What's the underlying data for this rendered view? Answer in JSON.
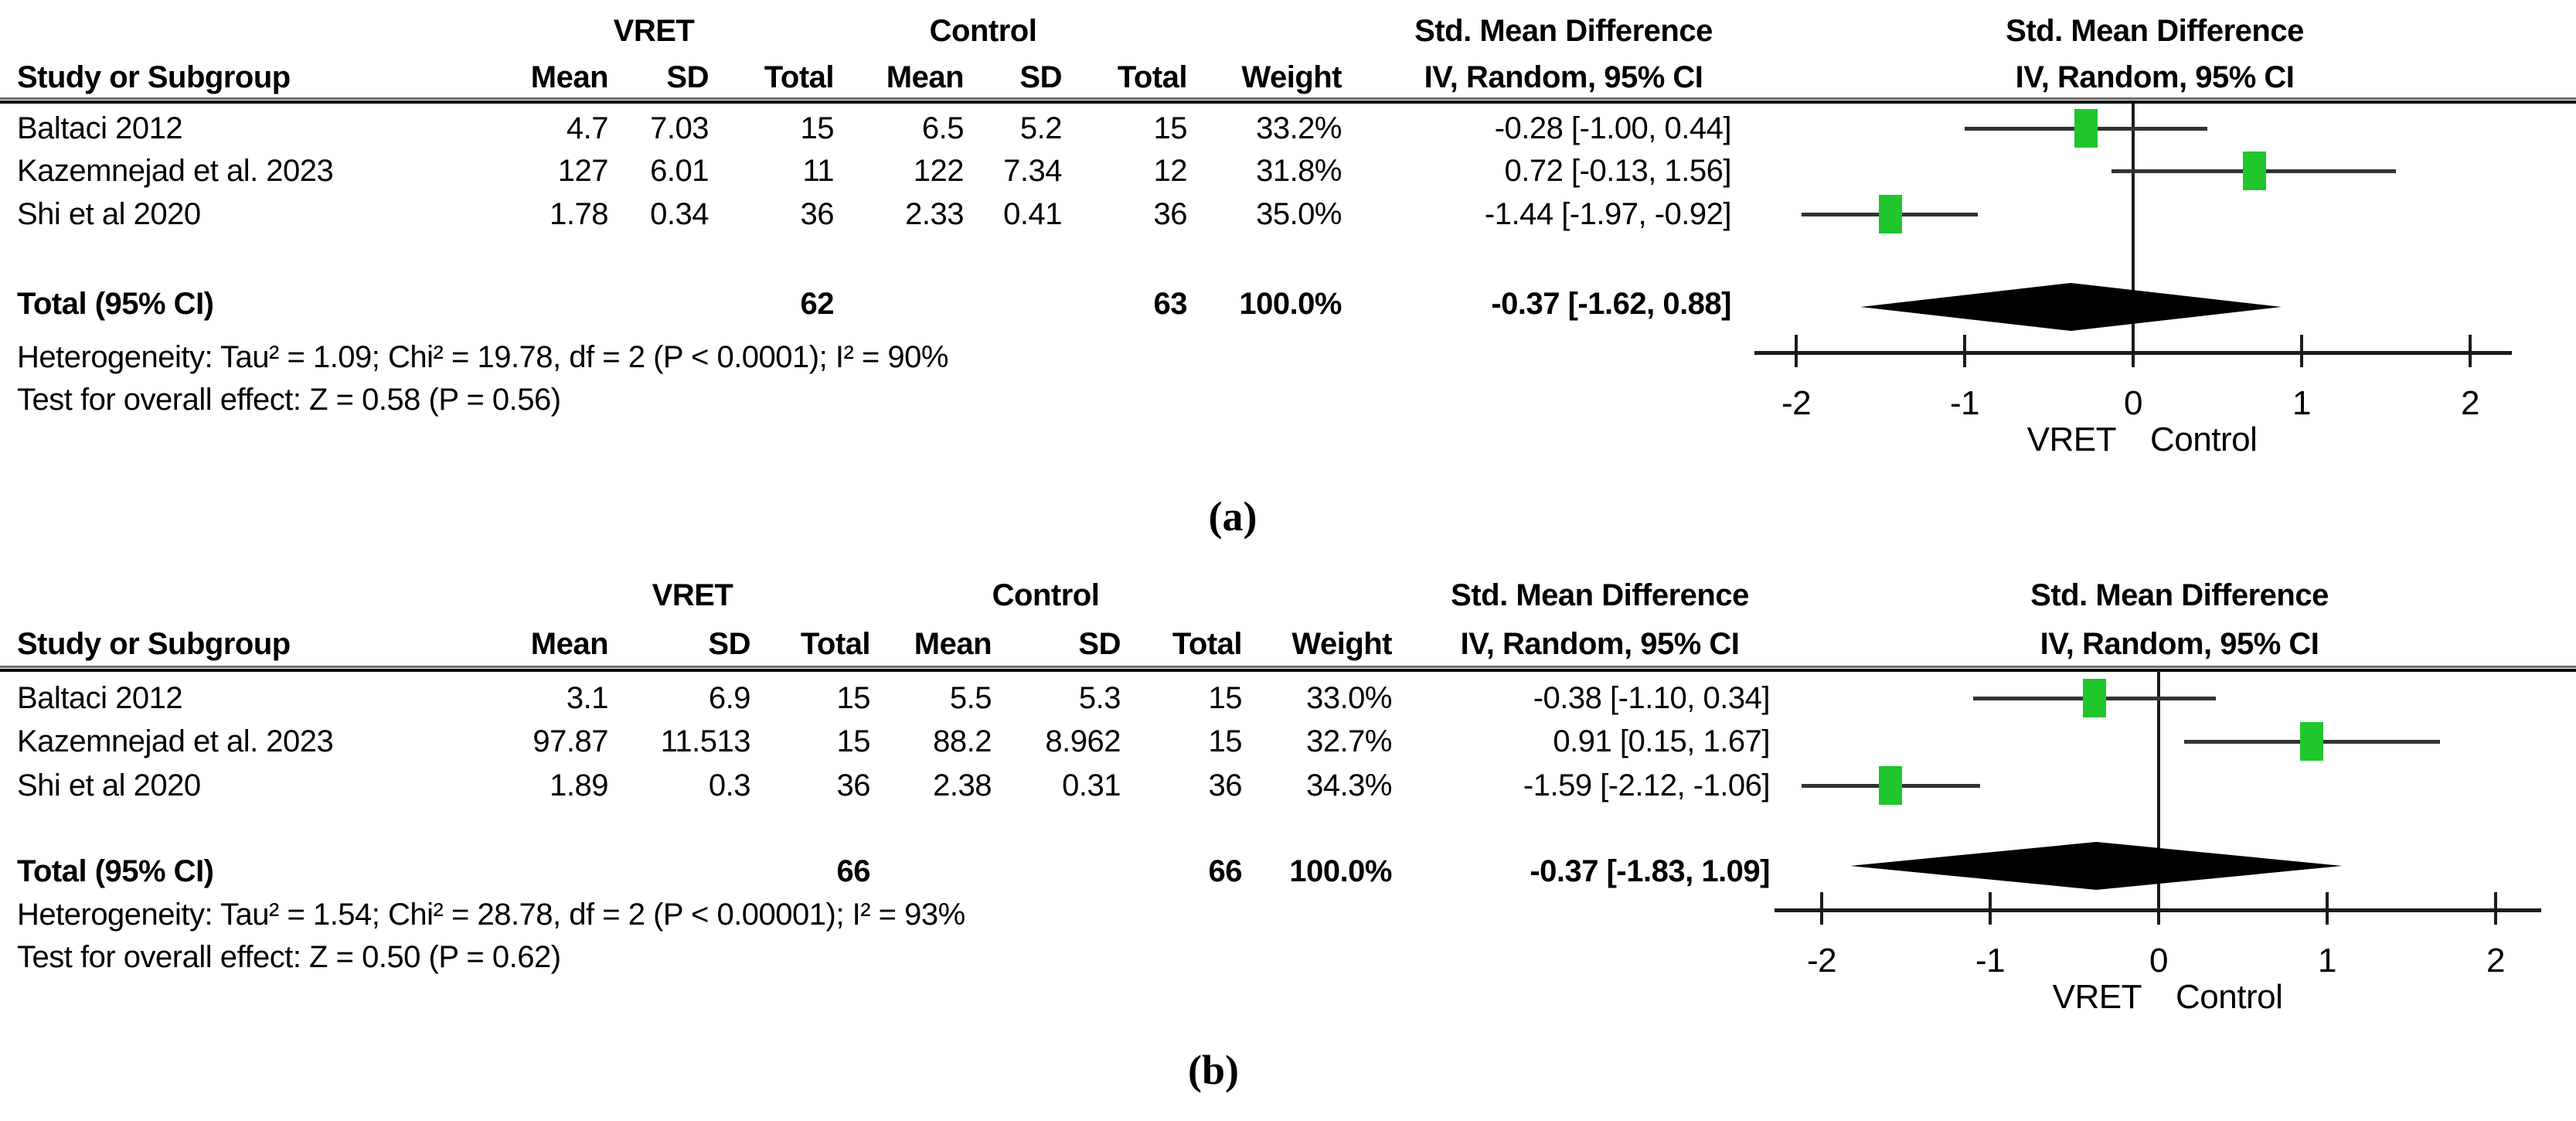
{
  "figure": {
    "captions": {
      "a": "(a)",
      "b": "(b)"
    }
  },
  "panels": [
    {
      "id": "a",
      "caption": "(a)",
      "header": {
        "study_col": "Study or Subgroup",
        "group1": "VRET",
        "group2": "Control",
        "smd_text_col": "Std. Mean Difference",
        "smd_plot_col": "Std. Mean Difference",
        "mean1": "Mean",
        "sd1": "SD",
        "n1": "Total",
        "mean2": "Mean",
        "sd2": "SD",
        "n2": "Total",
        "weight": "Weight",
        "ci_col_text": "IV, Random, 95% CI",
        "ci_col_plot": "IV, Random, 95% CI"
      },
      "rows": [
        {
          "study": "Baltaci 2012",
          "mean1": "4.7",
          "sd1": "7.03",
          "n1": "15",
          "mean2": "6.5",
          "sd2": "5.2",
          "n2": "15",
          "weight": "33.2%",
          "ci_text": "-0.28 [-1.00, 0.44]",
          "effect": -0.28,
          "lo": -1.0,
          "hi": 0.44
        },
        {
          "study": "Kazemnejad et al. 2023",
          "mean1": "127",
          "sd1": "6.01",
          "n1": "11",
          "mean2": "122",
          "sd2": "7.34",
          "n2": "12",
          "weight": "31.8%",
          "ci_text": "0.72 [-0.13, 1.56]",
          "effect": 0.72,
          "lo": -0.13,
          "hi": 1.56
        },
        {
          "study": "Shi et al 2020",
          "mean1": "1.78",
          "sd1": "0.34",
          "n1": "36",
          "mean2": "2.33",
          "sd2": "0.41",
          "n2": "36",
          "weight": "35.0%",
          "ci_text": "-1.44 [-1.97, -0.92]",
          "effect": -1.44,
          "lo": -1.97,
          "hi": -0.92
        }
      ],
      "total": {
        "label": "Total (95% CI)",
        "n1": "62",
        "n2": "63",
        "weight": "100.0%",
        "ci_text": "-0.37 [-1.62, 0.88]",
        "effect": -0.37,
        "lo": -1.62,
        "hi": 0.88
      },
      "heterogeneity": "Heterogeneity: Tau² = 1.09; Chi² = 19.78, df = 2 (P < 0.0001); I² = 90%",
      "overall_effect": "Test for overall effect: Z = 0.58 (P = 0.56)",
      "axis": {
        "tick_labels": [
          "-2",
          "-1",
          "0",
          "1",
          "2"
        ],
        "tick_values": [
          -2,
          -1,
          0,
          1,
          2
        ],
        "left_label": "VRET",
        "right_label": "Control"
      }
    },
    {
      "id": "b",
      "caption": "(b)",
      "header": {
        "study_col": "Study or Subgroup",
        "group1": "VRET",
        "group2": "Control",
        "smd_text_col": "Std. Mean Difference",
        "smd_plot_col": "Std. Mean Difference",
        "mean1": "Mean",
        "sd1": "SD",
        "n1": "Total",
        "mean2": "Mean",
        "sd2": "SD",
        "n2": "Total",
        "weight": "Weight",
        "ci_col_text": "IV, Random, 95% CI",
        "ci_col_plot": "IV, Random, 95% CI"
      },
      "rows": [
        {
          "study": "Baltaci 2012",
          "mean1": "3.1",
          "sd1": "6.9",
          "n1": "15",
          "mean2": "5.5",
          "sd2": "5.3",
          "n2": "15",
          "weight": "33.0%",
          "ci_text": "-0.38 [-1.10, 0.34]",
          "effect": -0.38,
          "lo": -1.1,
          "hi": 0.34
        },
        {
          "study": "Kazemnejad et al. 2023",
          "mean1": "97.87",
          "sd1": "11.513",
          "n1": "15",
          "mean2": "88.2",
          "sd2": "8.962",
          "n2": "15",
          "weight": "32.7%",
          "ci_text": "0.91 [0.15, 1.67]",
          "effect": 0.91,
          "lo": 0.15,
          "hi": 1.67
        },
        {
          "study": "Shi et al 2020",
          "mean1": "1.89",
          "sd1": "0.3",
          "n1": "36",
          "mean2": "2.38",
          "sd2": "0.31",
          "n2": "36",
          "weight": "34.3%",
          "ci_text": "-1.59 [-2.12, -1.06]",
          "effect": -1.59,
          "lo": -2.12,
          "hi": -1.06
        }
      ],
      "total": {
        "label": "Total (95% CI)",
        "n1": "66",
        "n2": "66",
        "weight": "100.0%",
        "ci_text": "-0.37 [-1.83, 1.09]",
        "effect": -0.37,
        "lo": -1.83,
        "hi": 1.09
      },
      "heterogeneity": "Heterogeneity: Tau² = 1.54; Chi² = 28.78, df = 2 (P < 0.00001); I² = 93%",
      "overall_effect": "Test for overall effect: Z = 0.50 (P = 0.62)",
      "axis": {
        "tick_labels": [
          "-2",
          "-1",
          "0",
          "1",
          "2"
        ],
        "tick_values": [
          -2,
          -1,
          0,
          1,
          2
        ],
        "left_label": "VRET",
        "right_label": "Control"
      }
    }
  ],
  "chart_data": [
    {
      "type": "scatter",
      "subtype": "forest_plot",
      "title": "Std. Mean Difference, IV, Random, 95% CI (panel a)",
      "effect_measure": "Std. Mean Difference",
      "model": "IV, Random, 95% CI",
      "categories": [
        "Baltaci 2012",
        "Kazemnejad et al. 2023",
        "Shi et al 2020"
      ],
      "series": [
        {
          "name": "effect",
          "values": [
            -0.28,
            0.72,
            -1.44
          ]
        },
        {
          "name": "ci_low",
          "values": [
            -1.0,
            -0.13,
            -1.97
          ]
        },
        {
          "name": "ci_high",
          "values": [
            0.44,
            1.56,
            -0.92
          ]
        },
        {
          "name": "weight_pct",
          "values": [
            33.2,
            31.8,
            35.0
          ]
        }
      ],
      "vret_group": {
        "means": [
          4.7,
          127,
          1.78
        ],
        "sds": [
          7.03,
          6.01,
          0.34
        ],
        "totals": [
          15,
          11,
          36
        ],
        "total_n": 62
      },
      "control_group": {
        "means": [
          6.5,
          122,
          2.33
        ],
        "sds": [
          5.2,
          7.34,
          0.41
        ],
        "totals": [
          15,
          12,
          36
        ],
        "total_n": 63
      },
      "pooled": {
        "effect": -0.37,
        "ci_low": -1.62,
        "ci_high": 0.88
      },
      "heterogeneity": {
        "tau2": 1.09,
        "chi2": 19.78,
        "df": 2,
        "p": "< 0.0001",
        "i2_pct": 90
      },
      "overall_effect": {
        "z": 0.58,
        "p": 0.56
      },
      "xlabel_left": "VRET",
      "xlabel_right": "Control",
      "xlim": [
        -2.4,
        2.4
      ],
      "xticks": [
        -2,
        -1,
        0,
        1,
        2
      ],
      "grid": false,
      "legend": false,
      "marker_color": "#1fc72c",
      "diamond_color": "#000000"
    },
    {
      "type": "scatter",
      "subtype": "forest_plot",
      "title": "Std. Mean Difference, IV, Random, 95% CI (panel b)",
      "effect_measure": "Std. Mean Difference",
      "model": "IV, Random, 95% CI",
      "categories": [
        "Baltaci 2012",
        "Kazemnejad et al. 2023",
        "Shi et al 2020"
      ],
      "series": [
        {
          "name": "effect",
          "values": [
            -0.38,
            0.91,
            -1.59
          ]
        },
        {
          "name": "ci_low",
          "values": [
            -1.1,
            0.15,
            -2.12
          ]
        },
        {
          "name": "ci_high",
          "values": [
            0.34,
            1.67,
            -1.06
          ]
        },
        {
          "name": "weight_pct",
          "values": [
            33.0,
            32.7,
            34.3
          ]
        }
      ],
      "vret_group": {
        "means": [
          3.1,
          97.87,
          1.89
        ],
        "sds": [
          6.9,
          11.513,
          0.3
        ],
        "totals": [
          15,
          15,
          36
        ],
        "total_n": 66
      },
      "control_group": {
        "means": [
          5.5,
          88.2,
          2.38
        ],
        "sds": [
          5.3,
          8.962,
          0.31
        ],
        "totals": [
          15,
          15,
          36
        ],
        "total_n": 66
      },
      "pooled": {
        "effect": -0.37,
        "ci_low": -1.83,
        "ci_high": 1.09
      },
      "heterogeneity": {
        "tau2": 1.54,
        "chi2": 28.78,
        "df": 2,
        "p": "< 0.00001",
        "i2_pct": 93
      },
      "overall_effect": {
        "z": 0.5,
        "p": 0.62
      },
      "xlabel_left": "VRET",
      "xlabel_right": "Control",
      "xlim": [
        -2.4,
        2.4
      ],
      "xticks": [
        -2,
        -1,
        0,
        1,
        2
      ],
      "grid": false,
      "legend": false,
      "marker_color": "#1fc72c",
      "diamond_color": "#000000"
    }
  ]
}
